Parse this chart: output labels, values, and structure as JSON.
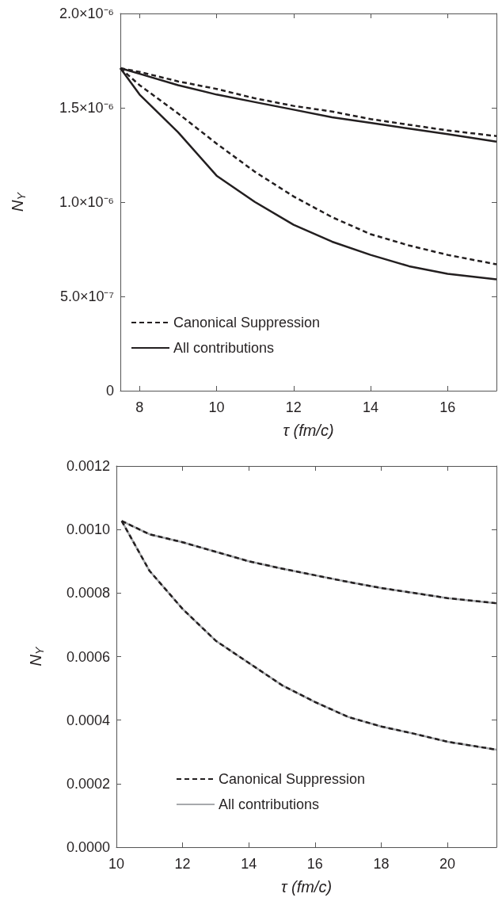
{
  "chart_data": [
    {
      "type": "line",
      "xlabel": "τ (fm/c)",
      "ylabel": "N$_{Υ}$",
      "xlim": [
        7.5,
        17.27
      ],
      "xticks": [
        8,
        10,
        12,
        14,
        16
      ],
      "ylim": [
        0,
        2e-06
      ],
      "yticks": [
        {
          "value": 0,
          "label": "0"
        },
        {
          "value": 5e-07,
          "label": "5.0×10⁻⁷"
        },
        {
          "value": 1e-06,
          "label": "1.0×10⁻⁶"
        },
        {
          "value": 1.5e-06,
          "label": "1.5×10⁻⁶"
        },
        {
          "value": 2e-06,
          "label": "2.0×10⁻⁶"
        }
      ],
      "grid": false,
      "legend": "bottom left",
      "marker": "none",
      "x": [
        7.5,
        8,
        9,
        10,
        11,
        12,
        13,
        14,
        15,
        16,
        17.27
      ],
      "series": [
        {
          "name": "Canonical Suppression",
          "color": "#231f20",
          "line_style": "dashed",
          "values": [
            1.71e-06,
            1.69e-06,
            1.64e-06,
            1.6e-06,
            1.55e-06,
            1.51e-06,
            1.48e-06,
            1.44e-06,
            1.41e-06,
            1.38e-06,
            1.35e-06
          ]
        },
        {
          "name": "All contributions",
          "color": "#231f20",
          "line_style": "solid",
          "values": [
            1.71e-06,
            1.68e-06,
            1.62e-06,
            1.57e-06,
            1.53e-06,
            1.49e-06,
            1.45e-06,
            1.42e-06,
            1.39e-06,
            1.36e-06,
            1.32e-06
          ]
        },
        {
          "color": "#231f20",
          "line_style": "dashed",
          "values": [
            1.71e-06,
            1.62e-06,
            1.47e-06,
            1.31e-06,
            1.16e-06,
            1.03e-06,
            9.2e-07,
            8.3e-07,
            7.7e-07,
            7.2e-07,
            6.7e-07
          ]
        },
        {
          "color": "#231f20",
          "line_style": "solid",
          "values": [
            1.71e-06,
            1.57e-06,
            1.37e-06,
            1.14e-06,
            1e-06,
            8.8e-07,
            7.9e-07,
            7.2e-07,
            6.6e-07,
            6.2e-07,
            5.9e-07
          ]
        }
      ]
    },
    {
      "type": "line",
      "xlabel": "τ (fm/c)",
      "ylabel": "N$_{Υ}$",
      "xlim": [
        10,
        21.48
      ],
      "xticks": [
        10,
        12,
        14,
        16,
        18,
        20
      ],
      "ylim": [
        0,
        0.0012
      ],
      "yticks": [
        {
          "value": 0,
          "label": "0.0000"
        },
        {
          "value": 0.0002,
          "label": "0.0002"
        },
        {
          "value": 0.0004,
          "label": "0.0004"
        },
        {
          "value": 0.0006,
          "label": "0.0006"
        },
        {
          "value": 0.0008,
          "label": "0.0008"
        },
        {
          "value": 0.001,
          "label": "0.0010"
        },
        {
          "value": 0.0012,
          "label": "0.0012"
        }
      ],
      "grid": false,
      "legend": "bottom",
      "marker": "none",
      "x": [
        10.16,
        11,
        12,
        13,
        14,
        15,
        16,
        17,
        18,
        19,
        20,
        21.48
      ],
      "series": [
        {
          "name": "Canonical Suppression",
          "color": "#231f20",
          "line_style": "dashed",
          "values": [
            0.001027,
            0.000985,
            0.00096,
            0.00093,
            0.0009,
            0.000877,
            0.000856,
            0.000835,
            0.000816,
            0.0008,
            0.000784,
            0.000768
          ]
        },
        {
          "name": "All contributions",
          "color": "#a7a9ac",
          "line_style": "solid",
          "values": [
            0.001027,
            0.000985,
            0.00096,
            0.00093,
            0.0009,
            0.000877,
            0.000856,
            0.000835,
            0.000816,
            0.0008,
            0.000784,
            0.000768
          ]
        },
        {
          "color": "#231f20",
          "line_style": "dashed",
          "values": [
            0.001027,
            0.00087,
            0.00075,
            0.00065,
            0.00058,
            0.00051,
            0.000457,
            0.00041,
            0.00038,
            0.000357,
            0.000332,
            0.000307
          ]
        },
        {
          "color": "#a7a9ac",
          "line_style": "solid",
          "values": [
            0.001027,
            0.00087,
            0.00075,
            0.00065,
            0.00058,
            0.00051,
            0.000457,
            0.00041,
            0.00038,
            0.000357,
            0.000332,
            0.000307
          ]
        }
      ]
    }
  ]
}
